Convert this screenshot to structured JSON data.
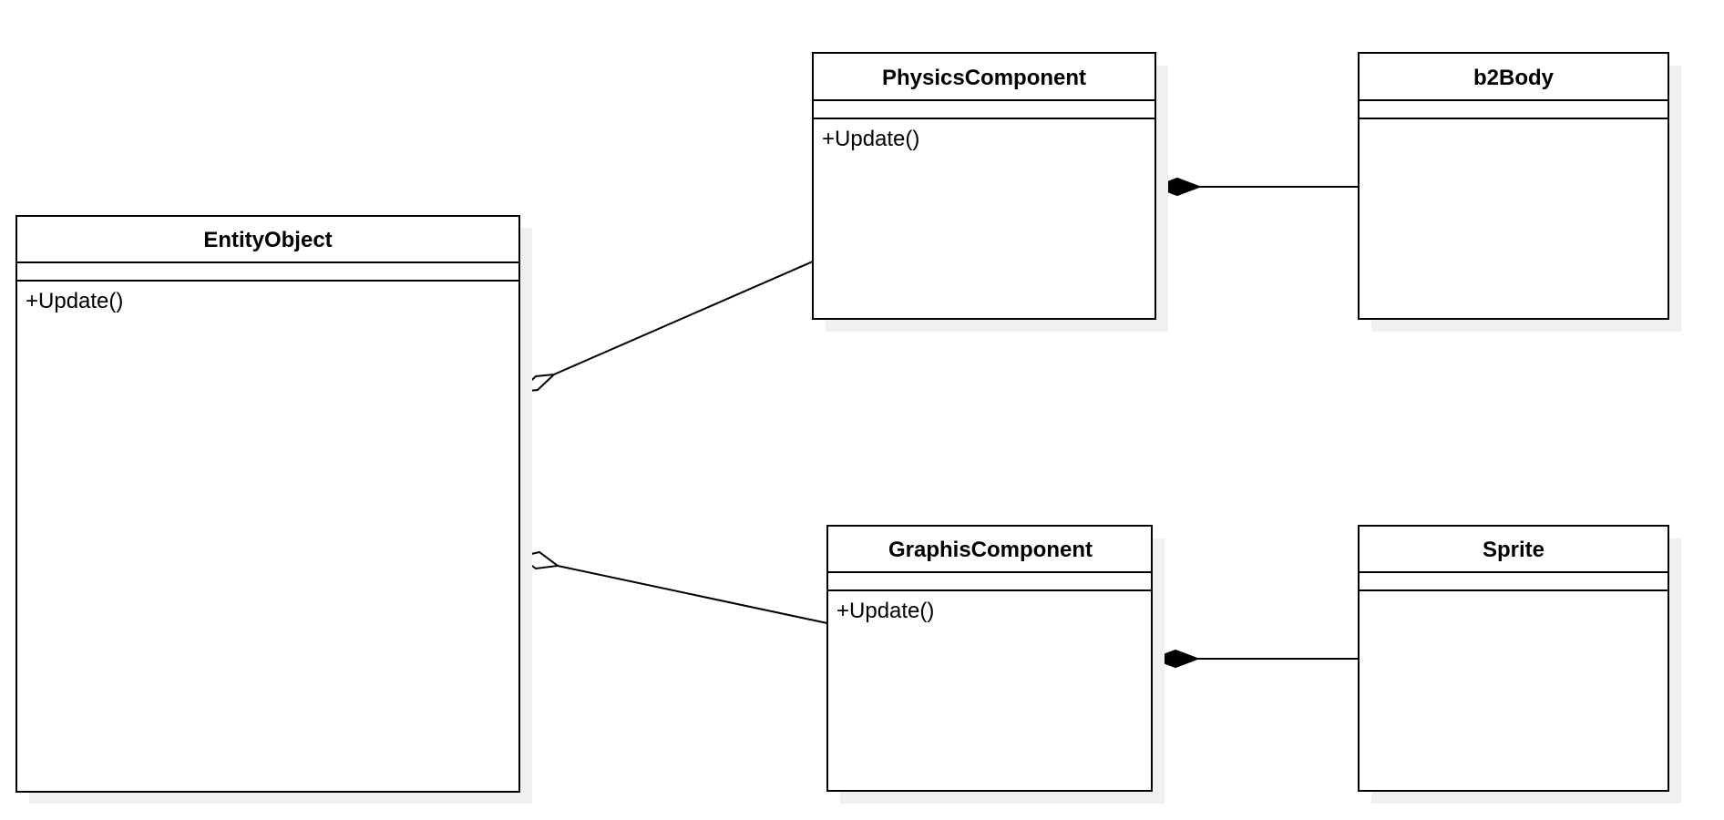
{
  "diagram": {
    "type": "uml-class-diagram",
    "classes": {
      "entity_object": {
        "name": "EntityObject",
        "methods": [
          "+Update()"
        ]
      },
      "physics_component": {
        "name": "PhysicsComponent",
        "methods": [
          "+Update()"
        ]
      },
      "b2body": {
        "name": "b2Body",
        "methods": []
      },
      "graphis_component": {
        "name": "GraphisComponent",
        "methods": [
          "+Update()"
        ]
      },
      "sprite": {
        "name": "Sprite",
        "methods": []
      }
    },
    "relationships": [
      {
        "type": "aggregation",
        "whole": "EntityObject",
        "part": "PhysicsComponent"
      },
      {
        "type": "aggregation",
        "whole": "EntityObject",
        "part": "GraphisComponent"
      },
      {
        "type": "composition",
        "whole": "PhysicsComponent",
        "part": "b2Body"
      },
      {
        "type": "composition",
        "whole": "GraphisComponent",
        "part": "Sprite"
      }
    ]
  }
}
